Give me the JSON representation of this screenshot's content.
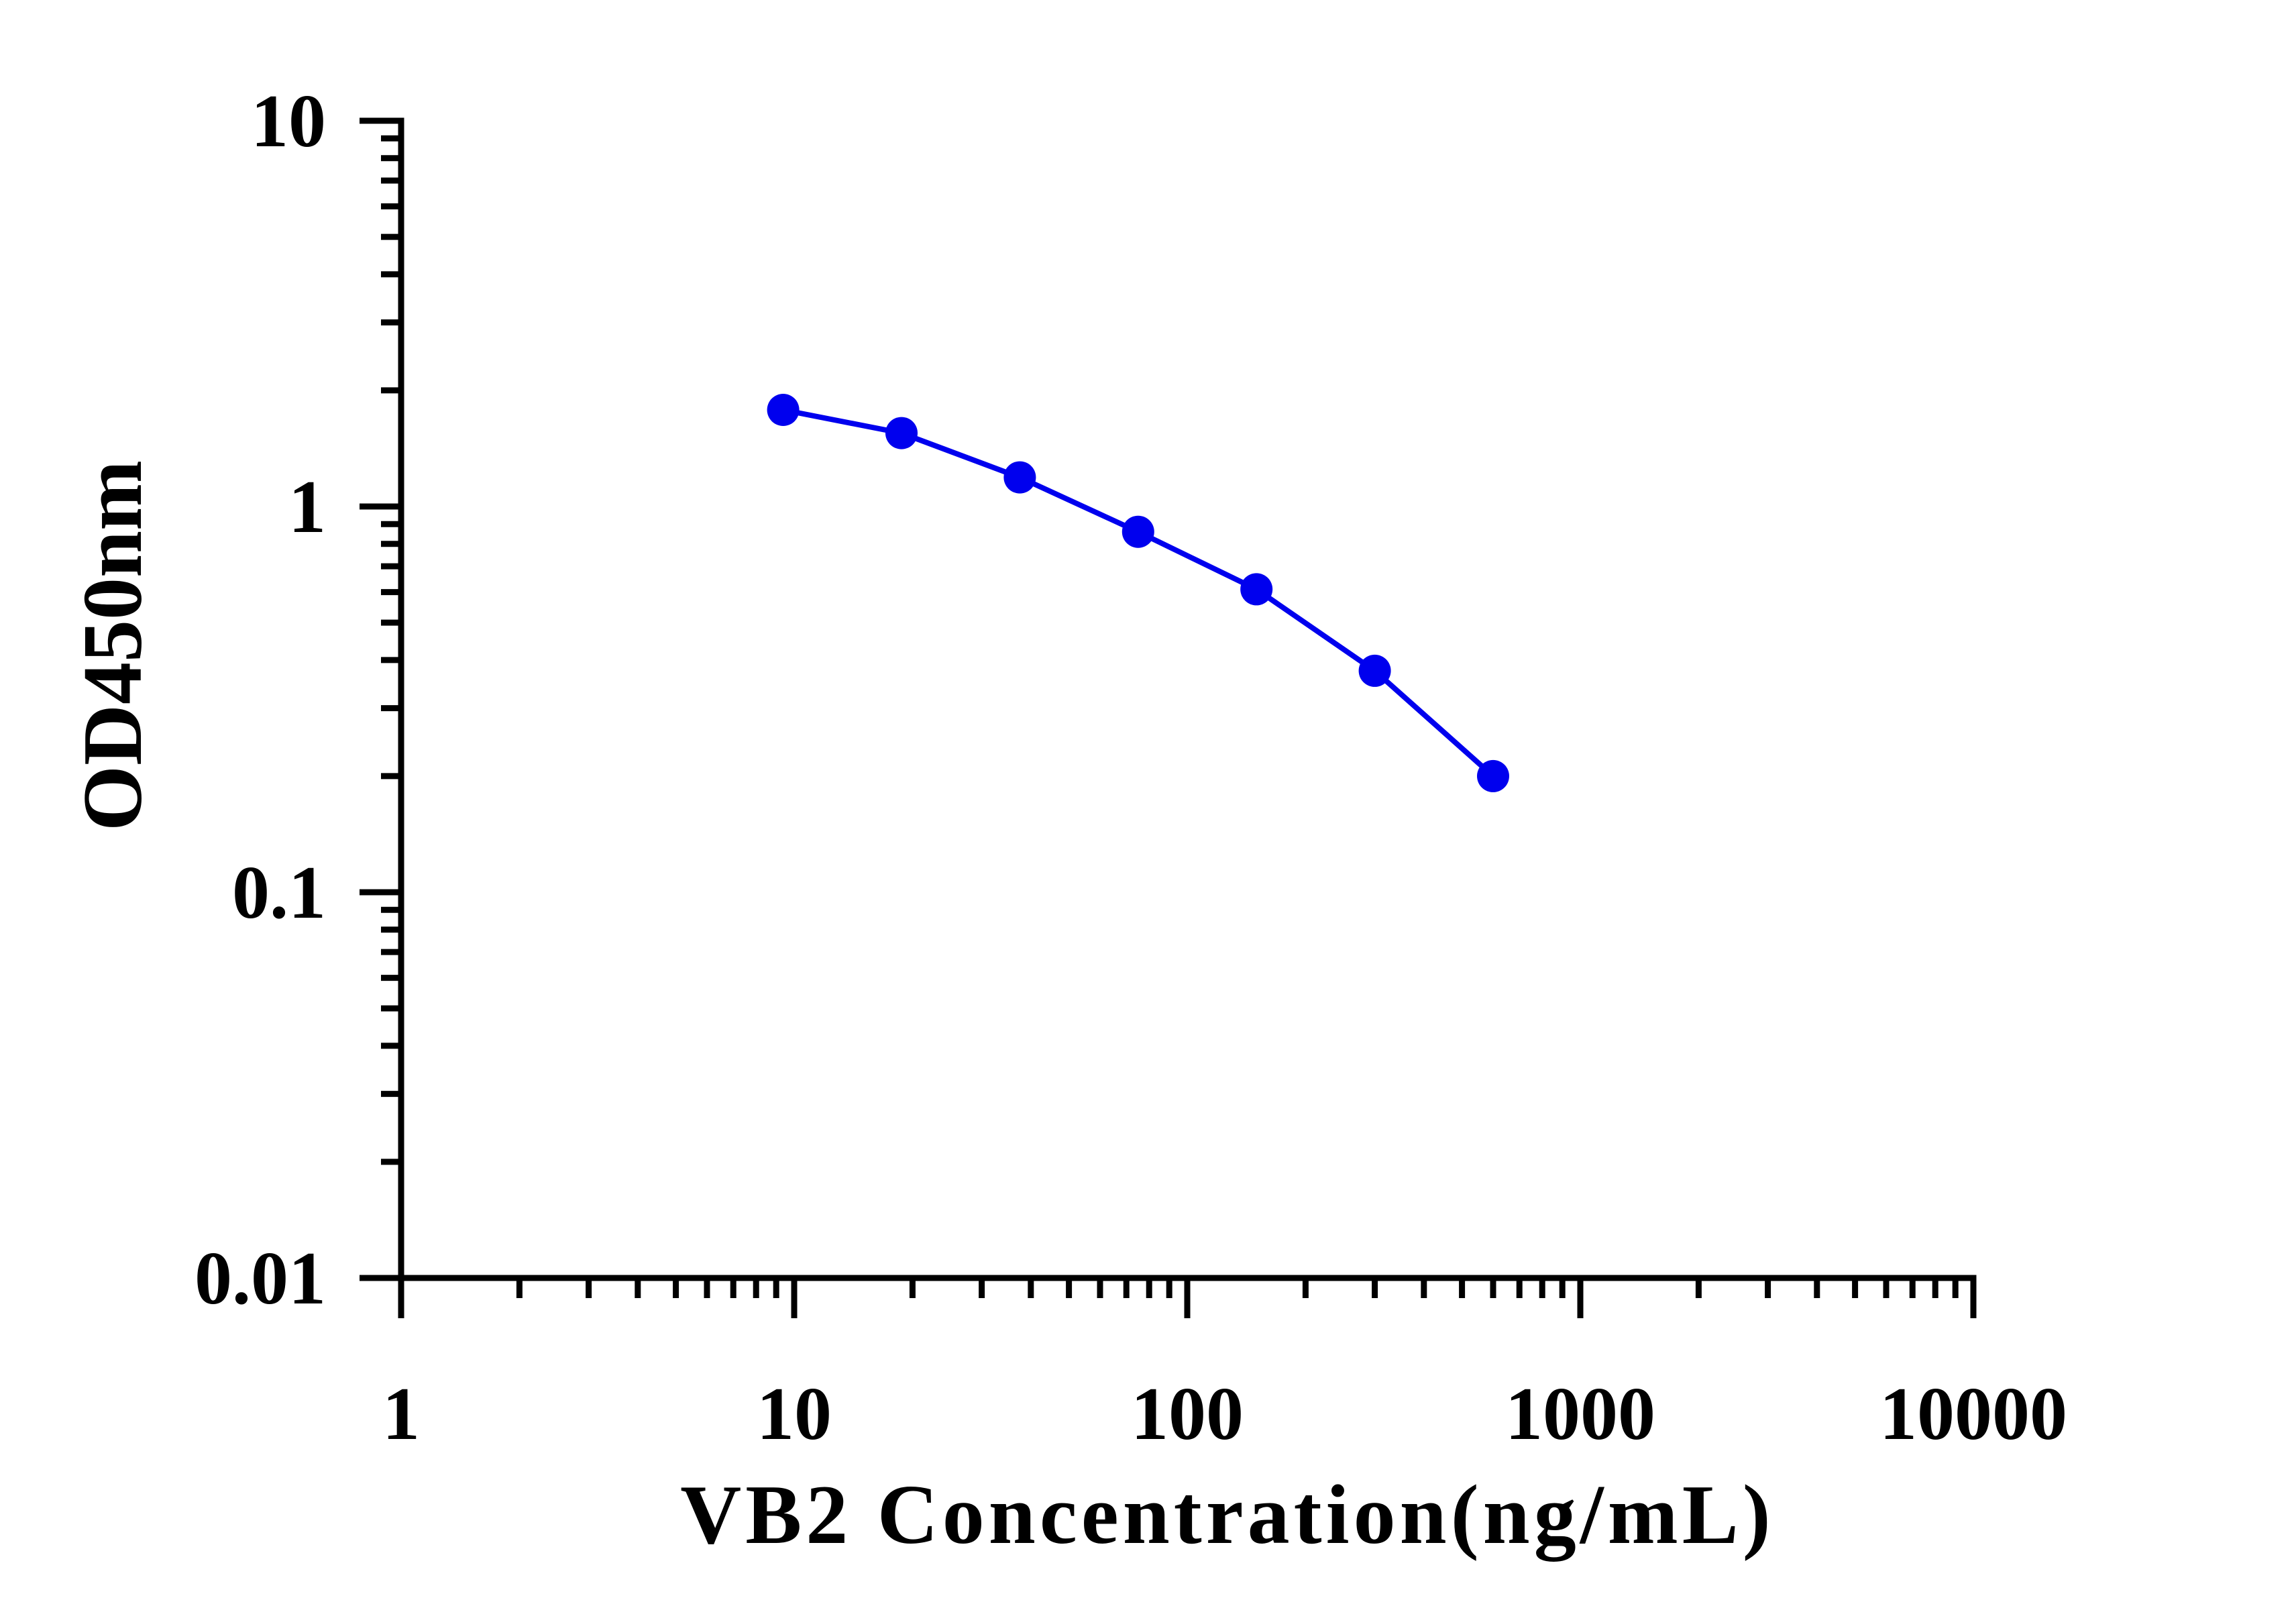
{
  "chart_data": {
    "type": "line",
    "xlabel": "VB2 Concentration(ng/mL)",
    "ylabel": "OD450nm",
    "x_scale": "log",
    "y_scale": "log",
    "xlim": [
      1,
      10000
    ],
    "ylim": [
      0.01,
      10
    ],
    "x_ticks": [
      {
        "value": 1,
        "label": "1"
      },
      {
        "value": 10,
        "label": "10"
      },
      {
        "value": 100,
        "label": "100"
      },
      {
        "value": 1000,
        "label": "1000"
      },
      {
        "value": 10000,
        "label": "10000"
      }
    ],
    "y_ticks": [
      {
        "value": 0.01,
        "label": "0.01"
      },
      {
        "value": 0.1,
        "label": "0.1"
      },
      {
        "value": 1,
        "label": "1"
      },
      {
        "value": 10,
        "label": "10"
      }
    ],
    "grid": false,
    "series": [
      {
        "color": "#0000ee",
        "marker": "circle",
        "x": [
          9.375,
          18.75,
          37.5,
          75,
          150,
          300,
          600
        ],
        "y": [
          1.78,
          1.55,
          1.19,
          0.86,
          0.61,
          0.375,
          0.2
        ]
      }
    ]
  }
}
